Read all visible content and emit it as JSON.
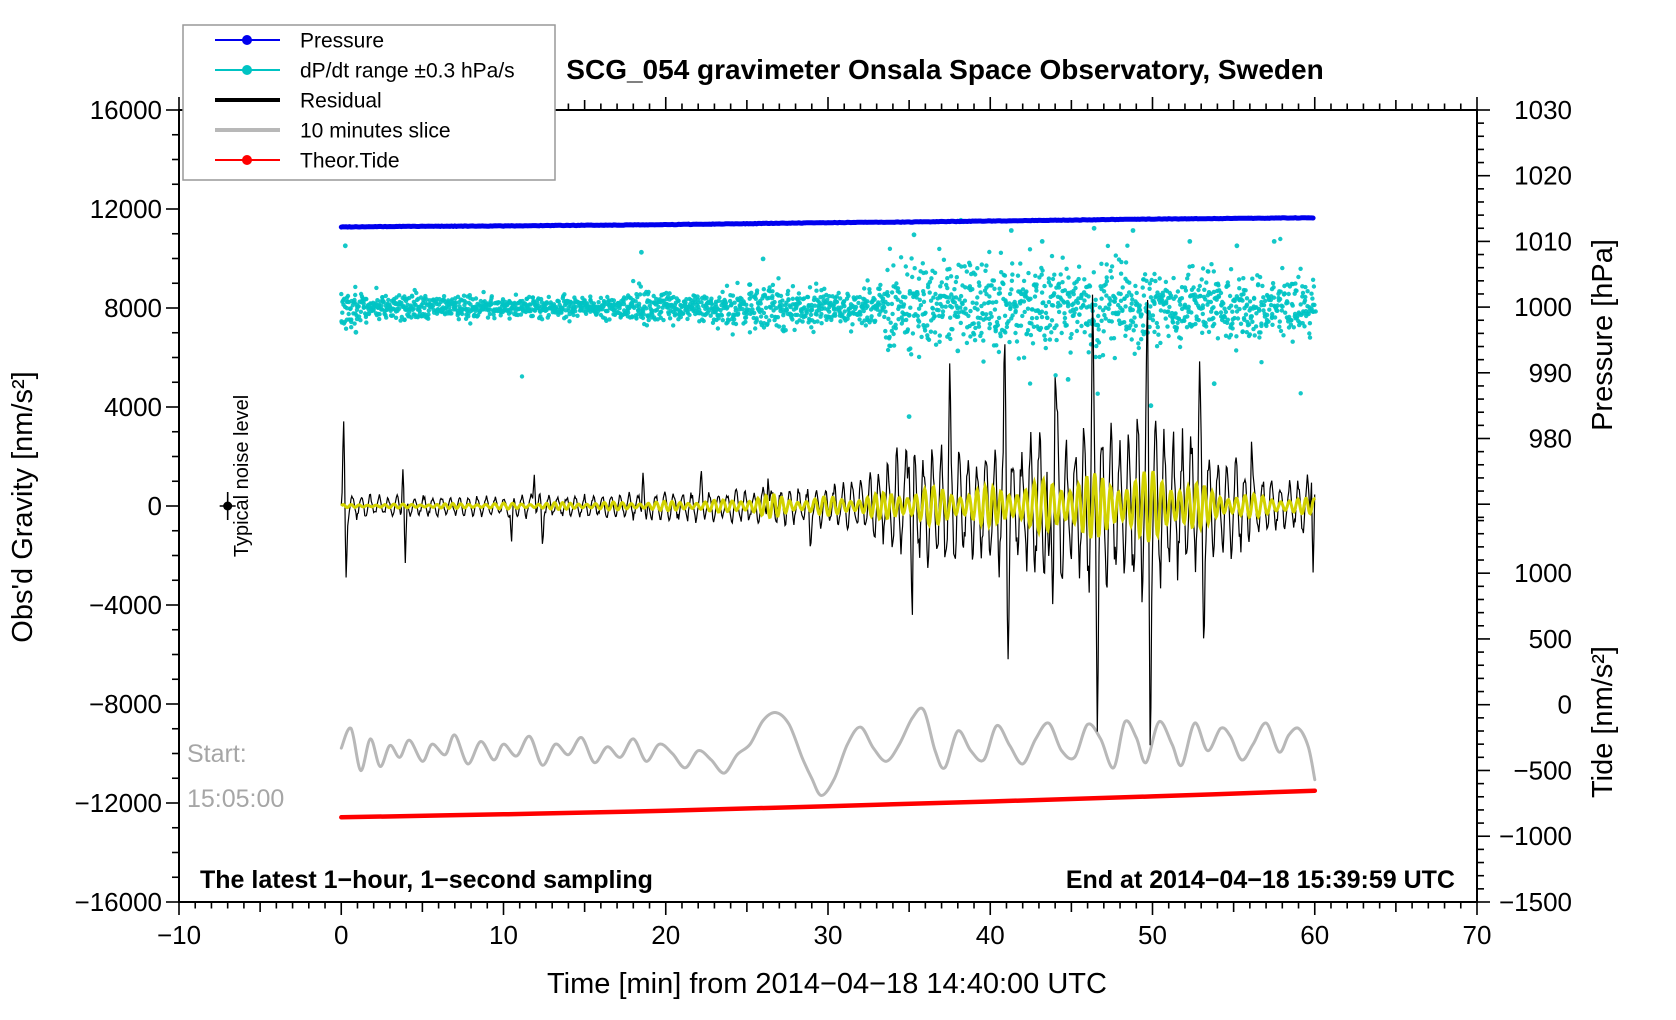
{
  "title": "SCG_054 gravimeter Onsala Space Observatory, Sweden",
  "legend": [
    {
      "label": "Pressure",
      "color": "#0000ee",
      "marker": "dot-line",
      "width": 2
    },
    {
      "label": "dP/dt range ±0.3 hPa/s",
      "color": "#00c3c3",
      "marker": "dot-line",
      "width": 2
    },
    {
      "label": "Residual",
      "color": "#000000",
      "marker": "line",
      "width": 4
    },
    {
      "label": "10 minutes slice",
      "color": "#b8b8b8",
      "marker": "line",
      "width": 4
    },
    {
      "label": "Theor.Tide",
      "color": "#ff0000",
      "marker": "dot-line",
      "width": 2
    }
  ],
  "annotations": {
    "noise_label": "Typical noise level",
    "start_line1": "Start:",
    "start_line2": "15:05:00",
    "bottom_left": "The latest 1−hour, 1−second sampling",
    "bottom_right": "End at 2014−04−18 15:39:59 UTC"
  },
  "colors": {
    "pressure": "#0000ee",
    "dpdt": "#00c3c3",
    "residual": "#000000",
    "slice": "#b8b8b8",
    "tide": "#ff0000",
    "filtered_overlay": "#d2d200",
    "gray_text": "#a6a6a6",
    "frame": "#000000"
  },
  "chart_data": {
    "type": "line",
    "title": "SCG_054 gravimeter Onsala Space Observatory, Sweden",
    "x_axis": {
      "label": "Time [min] from 2014−04−18 14:40:00 UTC",
      "range": [
        -10,
        70
      ],
      "major_ticks": [
        -10,
        0,
        10,
        20,
        30,
        40,
        50,
        60,
        70
      ],
      "minor_tick_interval": 1,
      "medium_tick_interval": 5,
      "data_span_min": [
        0,
        60
      ]
    },
    "y_axis_left": {
      "label": "Obs'd Gravity [nm/s²]",
      "range": [
        -16000,
        16000
      ],
      "major_ticks": [
        16000,
        12000,
        8000,
        4000,
        0,
        -4000,
        -8000,
        -12000,
        -16000
      ],
      "minor_tick_interval": 1000
    },
    "y_axis_right_pressure": {
      "label": "Pressure [hPa]",
      "major_ticks": [
        1030,
        1020,
        1010,
        1000,
        990,
        980
      ],
      "minor_tick_interval": 2,
      "note": "dP/dt scatter plotted on this axis, 0 hPa/s at 1000 hPa, ±0.3 hPa/s spans ±10 hPa"
    },
    "y_axis_right_tide": {
      "label": "Tide [nm/s²]",
      "major_ticks": [
        1000,
        500,
        0,
        -500,
        -1000,
        -1500
      ],
      "minor_tick_interval": 100
    },
    "series": {
      "pressure_hpa": [
        [
          0,
          1012.2
        ],
        [
          5,
          1012.3
        ],
        [
          10,
          1012.35
        ],
        [
          15,
          1012.45
        ],
        [
          20,
          1012.55
        ],
        [
          25,
          1012.7
        ],
        [
          30,
          1012.85
        ],
        [
          35,
          1012.95
        ],
        [
          40,
          1013.1
        ],
        [
          45,
          1013.25
        ],
        [
          50,
          1013.4
        ],
        [
          55,
          1013.5
        ],
        [
          60,
          1013.6
        ]
      ],
      "theor_tide_nms2": [
        [
          0,
          -856
        ],
        [
          10,
          -833
        ],
        [
          20,
          -807
        ],
        [
          30,
          -772
        ],
        [
          40,
          -736
        ],
        [
          50,
          -697
        ],
        [
          60,
          -654
        ]
      ],
      "slice_10min_tide_nms2": [
        [
          0,
          -330
        ],
        [
          0.6,
          -180
        ],
        [
          1.2,
          -500
        ],
        [
          1.8,
          -260
        ],
        [
          2.4,
          -470
        ],
        [
          3,
          -310
        ],
        [
          3.6,
          -400
        ],
        [
          4.2,
          -270
        ],
        [
          5,
          -430
        ],
        [
          5.6,
          -300
        ],
        [
          6.4,
          -380
        ],
        [
          7,
          -230
        ],
        [
          7.8,
          -450
        ],
        [
          8.6,
          -280
        ],
        [
          9.4,
          -420
        ],
        [
          10,
          -300
        ],
        [
          10.8,
          -390
        ],
        [
          11.6,
          -240
        ],
        [
          12.4,
          -460
        ],
        [
          13.2,
          -300
        ],
        [
          14,
          -380
        ],
        [
          14.8,
          -250
        ],
        [
          15.6,
          -440
        ],
        [
          16.4,
          -320
        ],
        [
          17.2,
          -400
        ],
        [
          18,
          -260
        ],
        [
          18.8,
          -430
        ],
        [
          19.6,
          -300
        ],
        [
          20.4,
          -370
        ],
        [
          21.2,
          -480
        ],
        [
          22,
          -350
        ],
        [
          22.8,
          -420
        ],
        [
          23.6,
          -520
        ],
        [
          24.4,
          -380
        ],
        [
          25.2,
          -300
        ],
        [
          26,
          -120
        ],
        [
          26.8,
          -60
        ],
        [
          27.6,
          -150
        ],
        [
          28.4,
          -400
        ],
        [
          29,
          -560
        ],
        [
          29.6,
          -690
        ],
        [
          30.4,
          -560
        ],
        [
          31.2,
          -300
        ],
        [
          32,
          -170
        ],
        [
          32.8,
          -330
        ],
        [
          33.6,
          -430
        ],
        [
          34.4,
          -300
        ],
        [
          35.2,
          -100
        ],
        [
          35.9,
          -40
        ],
        [
          36.6,
          -350
        ],
        [
          37.2,
          -480
        ],
        [
          38,
          -200
        ],
        [
          38.8,
          -350
        ],
        [
          39.6,
          -420
        ],
        [
          40.4,
          -160
        ],
        [
          41.2,
          -310
        ],
        [
          42,
          -450
        ],
        [
          42.8,
          -260
        ],
        [
          43.6,
          -140
        ],
        [
          44.4,
          -350
        ],
        [
          45.2,
          -400
        ],
        [
          46,
          -150
        ],
        [
          46.8,
          -260
        ],
        [
          47.6,
          -480
        ],
        [
          48.3,
          -130
        ],
        [
          49,
          -250
        ],
        [
          49.6,
          -440
        ],
        [
          50.4,
          -130
        ],
        [
          51.2,
          -300
        ],
        [
          51.8,
          -460
        ],
        [
          52.6,
          -140
        ],
        [
          53.4,
          -350
        ],
        [
          54.2,
          -180
        ],
        [
          54.8,
          -240
        ],
        [
          55.5,
          -420
        ],
        [
          56.2,
          -300
        ],
        [
          57,
          -140
        ],
        [
          57.8,
          -360
        ],
        [
          58.4,
          -230
        ],
        [
          59,
          -180
        ],
        [
          59.6,
          -320
        ],
        [
          60,
          -570
        ]
      ],
      "residual_envelope_nms2": [
        [
          0,
          600
        ],
        [
          0.5,
          600
        ],
        [
          3,
          450
        ],
        [
          3.6,
          500
        ],
        [
          4.3,
          480
        ],
        [
          10,
          450
        ],
        [
          11,
          550
        ],
        [
          13,
          500
        ],
        [
          17,
          550
        ],
        [
          19,
          650
        ],
        [
          21,
          700
        ],
        [
          23,
          700
        ],
        [
          25,
          800
        ],
        [
          27,
          800
        ],
        [
          29,
          900
        ],
        [
          31,
          1100
        ],
        [
          33,
          1500
        ],
        [
          34,
          2200
        ],
        [
          35,
          3200
        ],
        [
          36,
          2600
        ],
        [
          37,
          3300
        ],
        [
          38,
          2800
        ],
        [
          39,
          2200
        ],
        [
          40,
          2900
        ],
        [
          41,
          3100
        ],
        [
          42,
          2700
        ],
        [
          43,
          3600
        ],
        [
          44,
          4200
        ],
        [
          45,
          3100
        ],
        [
          46,
          3900
        ],
        [
          47,
          4300
        ],
        [
          48,
          3100
        ],
        [
          49,
          4000
        ],
        [
          50,
          4300
        ],
        [
          51,
          3100
        ],
        [
          52,
          3300
        ],
        [
          53,
          3400
        ],
        [
          54,
          2100
        ],
        [
          55,
          2300
        ],
        [
          56,
          1800
        ],
        [
          57,
          1400
        ],
        [
          58,
          1200
        ],
        [
          59,
          1300
        ],
        [
          60,
          1700
        ]
      ],
      "residual_spikes_nms2": [
        [
          0.15,
          2950
        ],
        [
          0.3,
          -2800
        ],
        [
          3.8,
          1750
        ],
        [
          3.95,
          -2600
        ],
        [
          10.5,
          -1600
        ],
        [
          11.9,
          1500
        ],
        [
          12.4,
          -1450
        ],
        [
          18.6,
          1750
        ],
        [
          18.8,
          -1050
        ],
        [
          22.2,
          950
        ],
        [
          26.3,
          1600
        ],
        [
          28.9,
          -1400
        ],
        [
          35.0,
          3900
        ],
        [
          35.2,
          -4400
        ],
        [
          37.5,
          3800
        ],
        [
          40.9,
          5000
        ],
        [
          41.1,
          -4300
        ],
        [
          43.6,
          -5000
        ],
        [
          44.0,
          5200
        ],
        [
          46.3,
          5100
        ],
        [
          46.6,
          -5600
        ],
        [
          49.7,
          5300
        ],
        [
          49.85,
          -7500
        ],
        [
          52.9,
          4100
        ],
        [
          53.15,
          -4000
        ],
        [
          56.1,
          2600
        ],
        [
          59.8,
          2100
        ],
        [
          59.9,
          -2200
        ]
      ],
      "filtered_overlay_envelope_nms2": [
        [
          0,
          60
        ],
        [
          5,
          90
        ],
        [
          10,
          120
        ],
        [
          15,
          150
        ],
        [
          20,
          190
        ],
        [
          24,
          260
        ],
        [
          25.5,
          450
        ],
        [
          26.5,
          480
        ],
        [
          28,
          320
        ],
        [
          30,
          380
        ],
        [
          32,
          420
        ],
        [
          34,
          600
        ],
        [
          36,
          800
        ],
        [
          38,
          720
        ],
        [
          40,
          820
        ],
        [
          42,
          950
        ],
        [
          44,
          1150
        ],
        [
          45.5,
          1350
        ],
        [
          47,
          1300
        ],
        [
          48.5,
          1250
        ],
        [
          50,
          1500
        ],
        [
          51,
          1350
        ],
        [
          52.5,
          1000
        ],
        [
          54,
          650
        ],
        [
          56,
          480
        ],
        [
          58,
          380
        ],
        [
          60,
          300
        ]
      ],
      "dpdt_sigma_hpa_per_s": [
        [
          0,
          0.06
        ],
        [
          0.8,
          0.045
        ],
        [
          1.5,
          0.028
        ],
        [
          4,
          0.032
        ],
        [
          6,
          0.026
        ],
        [
          10,
          0.024
        ],
        [
          17,
          0.026
        ],
        [
          18,
          0.05
        ],
        [
          19.5,
          0.032
        ],
        [
          22,
          0.03
        ],
        [
          24.5,
          0.055
        ],
        [
          26,
          0.05
        ],
        [
          27.5,
          0.05
        ],
        [
          31,
          0.04
        ],
        [
          33,
          0.05
        ],
        [
          34,
          0.1
        ],
        [
          36,
          0.11
        ],
        [
          37.5,
          0.085
        ],
        [
          40,
          0.105
        ],
        [
          42,
          0.1
        ],
        [
          44,
          0.095
        ],
        [
          45,
          0.09
        ],
        [
          47,
          0.105
        ],
        [
          49,
          0.09
        ],
        [
          51,
          0.08
        ],
        [
          53,
          0.075
        ],
        [
          55,
          0.07
        ],
        [
          57,
          0.075
        ],
        [
          59,
          0.065
        ],
        [
          60,
          0.06
        ]
      ],
      "dpdt_outliers_hpa_per_s": [
        [
          0.25,
          0.28
        ],
        [
          0.9,
          -0.115
        ],
        [
          18.5,
          0.25
        ],
        [
          26,
          0.22
        ],
        [
          35,
          -0.5
        ],
        [
          35.3,
          0.33
        ],
        [
          38,
          -0.2
        ],
        [
          41.3,
          0.35
        ],
        [
          43.2,
          0.3
        ],
        [
          44.8,
          -0.33
        ],
        [
          46.4,
          0.36
        ],
        [
          48.8,
          0.35
        ],
        [
          49.9,
          -0.45
        ],
        [
          52.3,
          0.3
        ],
        [
          53.8,
          -0.35
        ],
        [
          55.2,
          0.28
        ],
        [
          57.5,
          0.3
        ]
      ]
    },
    "noise_marker": {
      "t_min": -7,
      "value_nms2": 0,
      "label": "Typical noise level"
    }
  }
}
